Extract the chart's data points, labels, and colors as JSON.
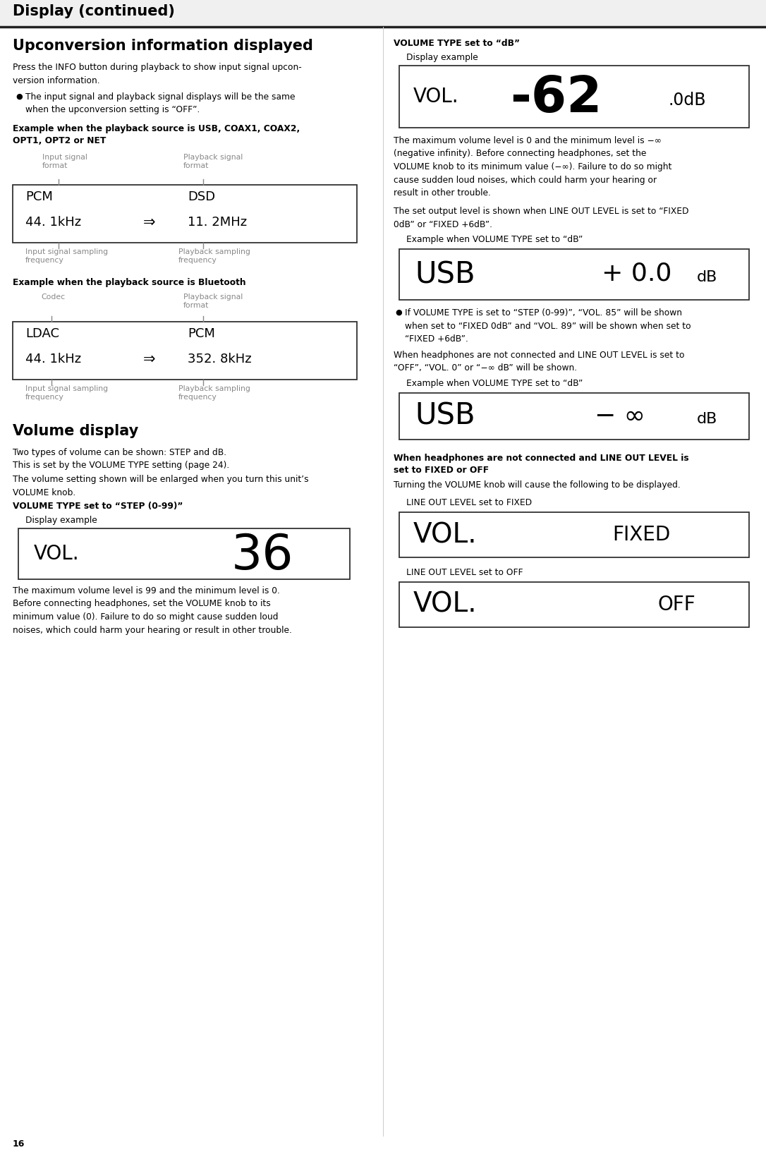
{
  "page_title": "Display (continued)",
  "page_number": "16",
  "bg_color": "#ffffff",
  "text_color": "#000000",
  "gray_color": "#888888",
  "section1_title": "Upconversion information displayed",
  "section1_body1": "Press the INFO button during playback to show input signal upcon-\nversion information.",
  "section1_bullet": "The input signal and playback signal displays will be the same\nwhen the upconversion setting is “OFF”.",
  "example1_title": "Example when the playback source is USB, COAX1, COAX2,\nOPT1, OPT2 or NET",
  "example1_label_tl": "Input signal\nformat",
  "example1_label_tr": "Playback signal\nformat",
  "example1_label_bl": "Input signal sampling\nfrequency",
  "example1_label_br": "Playback sampling\nfrequency",
  "example1_box_line1_left": "PCM",
  "example1_box_line1_right": "DSD",
  "example1_box_line2_left": "44. 1kHz",
  "example1_box_arrow": "⇒",
  "example1_box_line2_right": "11. 2MHz",
  "example2_title": "Example when the playback source is Bluetooth",
  "example2_label_codec": "Codec",
  "example2_label_pb": "Playback signal\nformat",
  "example2_label_bl": "Input signal sampling\nfrequency",
  "example2_label_br": "Playback sampling\nfrequency",
  "example2_box_line1_left": "LDAC",
  "example2_box_line1_right": "PCM",
  "example2_box_line2_left": "44. 1kHz",
  "example2_box_arrow": "⇒",
  "example2_box_line2_right": "352. 8kHz",
  "section2_title": "Volume display",
  "section2_body1": "Two types of volume can be shown: STEP and dB.\nThis is set by the VOLUME TYPE setting (page 24).",
  "section2_body2": "The volume setting shown will be enlarged when you turn this unit’s\nVOLUME knob.",
  "vol_step_heading": "VOLUME TYPE set to “STEP (0-99)”",
  "vol_step_subheading": "Display example",
  "vol_step_display_left": "VOL.",
  "vol_step_display_right": "36",
  "vol_step_body": "The maximum volume level is 99 and the minimum level is 0.\nBefore connecting headphones, set the VOLUME knob to its\nminimum value (0). Failure to do so might cause sudden loud\nnoises, which could harm your hearing or result in other trouble.",
  "vol_db_heading": "VOLUME TYPE set to “dB”",
  "vol_db_subheading": "Display example",
  "vol_db_display_vol": "VOL. ",
  "vol_db_display_large": "-62",
  "vol_db_display_suffix": ".0dB",
  "vol_db_body": "The maximum volume level is 0 and the minimum level is −∞\n(negative infinity). Before connecting headphones, set the\nVOLUME knob to its minimum value (−∞). Failure to do so might\ncause sudden loud noises, which could harm your hearing or\nresult in other trouble.",
  "fixed_intro": "The set output level is shown when LINE OUT LEVEL is set to “FIXED\n0dB” or “FIXED +6dB”.",
  "fixed_example_label": "Example when VOLUME TYPE set to “dB”",
  "fixed_display_left": "USB",
  "fixed_display_right": "+ 0.0",
  "fixed_display_suffix": "dB",
  "fixed_bullet": "If VOLUME TYPE is set to “STEP (0-99)”, “VOL. 85” will be shown\nwhen set to “FIXED 0dB” and “VOL. 89” will be shown when set to\n“FIXED +6dB”.",
  "off_intro": "When headphones are not connected and LINE OUT LEVEL is set to\n“OFF”, “VOL. 0” or “−∞ dB” will be shown.",
  "off_example_label": "Example when VOLUME TYPE set to “dB”",
  "off_display_left": "USB",
  "off_display_right": "− ∞",
  "off_display_suffix": " dB",
  "headphone_heading": "When headphones are not connected and LINE OUT LEVEL is\nset to FIXED or OFF",
  "headphone_body": "Turning the VOLUME knob will cause the following to be displayed.",
  "fixed_label": "LINE OUT LEVEL set to FIXED",
  "fixed_vol_left": "VOL.",
  "fixed_vol_right": "FIXED",
  "off_label": "LINE OUT LEVEL set to OFF",
  "off_vol_left": "VOL.",
  "off_vol_right": "OFF"
}
